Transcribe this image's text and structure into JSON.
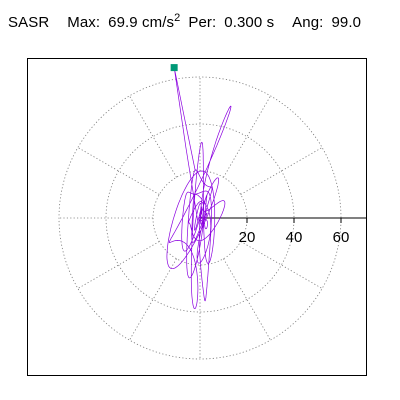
{
  "header": {
    "name": "SASR",
    "max_label": "Max:",
    "max_value": "69.9",
    "max_unit": "cm/s",
    "max_unit_exp": "2",
    "per_label": "Per:",
    "per_value": "0.300 s",
    "ang_label": "Ang:",
    "ang_value": "99.0"
  },
  "chart_data": {
    "type": "polar-orbit",
    "title": "",
    "radial_ticks": [
      20,
      40,
      60
    ],
    "radial_tick_labels": [
      "20",
      "40",
      "60"
    ],
    "rings": [
      20,
      40,
      60
    ],
    "spokes_deg": [
      0,
      30,
      60,
      90,
      120,
      150,
      180,
      210,
      240,
      270,
      300,
      330
    ],
    "grid": true,
    "max_amplitude": 69.9,
    "max_angle_deg": 99.0,
    "trace_color": "#8b00e0",
    "marker_color": "#009977",
    "grid_color": "#777777",
    "seed": 7
  }
}
